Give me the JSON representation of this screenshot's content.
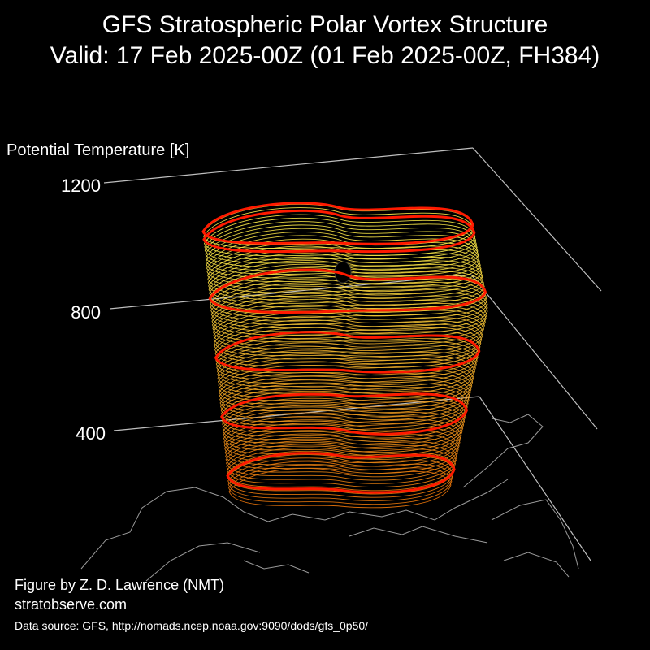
{
  "header": {
    "title_line1": "GFS Stratospheric Polar Vortex Structure",
    "title_line2": "Valid: 17 Feb 2025-00Z  (01 Feb 2025-00Z, FH384)"
  },
  "chart_data": {
    "type": "3d-isosurface",
    "zlabel": "Potential Temperature [K]",
    "zticks": [
      "400",
      "800",
      "1200"
    ],
    "zlim": [
      300,
      1300
    ],
    "highlight_levels": [
      400,
      550,
      700,
      850,
      1000
    ],
    "colors": {
      "low": "#e0700a",
      "high": "#f2e84a",
      "highlight": "#ff1a00",
      "coast": "#9a9a9a",
      "axis": "#bfbfbf"
    }
  },
  "footer": {
    "credit": "Figure by Z. D. Lawrence (NMT)",
    "site": "stratobserve.com",
    "source": "Data source: GFS, http://nomads.ncep.noaa.gov:9090/dods/gfs_0p50/"
  }
}
